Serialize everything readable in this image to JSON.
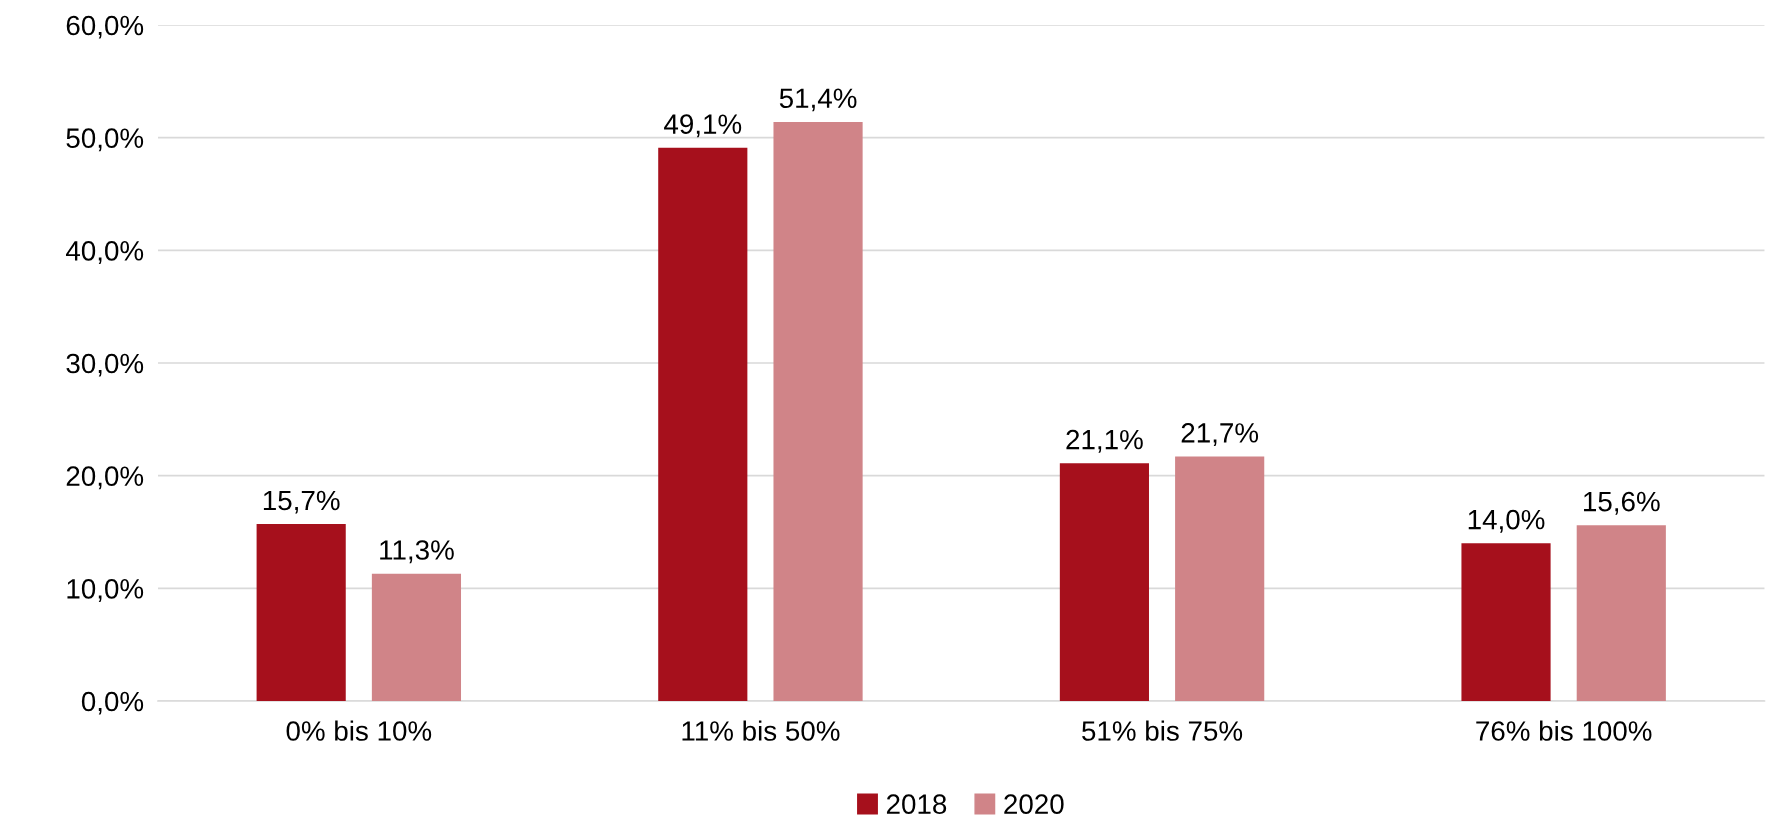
{
  "chart_data": {
    "type": "bar",
    "categories": [
      "0% bis 10%",
      "11% bis 50%",
      "51% bis 75%",
      "76% bis 100%"
    ],
    "series": [
      {
        "name": "2018",
        "color": "#a6101c",
        "values": [
          15.7,
          49.1,
          21.1,
          14.0
        ],
        "value_labels": [
          "15,7%",
          "49,1%",
          "21,1%",
          "14,0%"
        ]
      },
      {
        "name": "2020",
        "color": "#d08488",
        "values": [
          11.3,
          51.4,
          21.7,
          15.6
        ],
        "value_labels": [
          "11,3%",
          "51,4%",
          "21,7%",
          "15,6%"
        ]
      }
    ],
    "ylim": [
      0,
      60
    ],
    "yticks": [
      {
        "value": 0,
        "label": "0,0%"
      },
      {
        "value": 10,
        "label": "10,0%"
      },
      {
        "value": 20,
        "label": "20,0%"
      },
      {
        "value": 30,
        "label": "30,0%"
      },
      {
        "value": 40,
        "label": "40,0%"
      },
      {
        "value": 50,
        "label": "50,0%"
      },
      {
        "value": 60,
        "label": "60,0%"
      }
    ],
    "grid": "y",
    "legend": "bottom"
  }
}
